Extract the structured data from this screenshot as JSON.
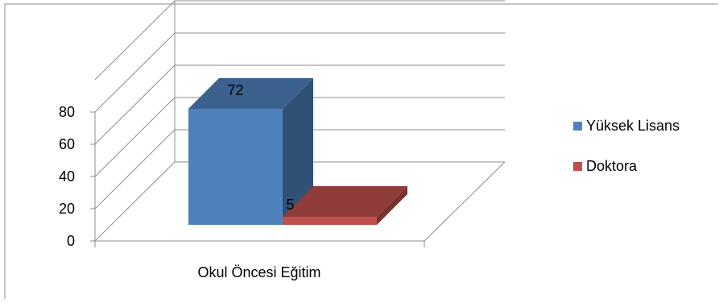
{
  "chart_data": {
    "type": "bar",
    "style": "3d-clustered-column",
    "categories": [
      "Okul Öncesi  Eğitim"
    ],
    "series": [
      {
        "name": "Yüksek Lisans",
        "values": [
          72
        ],
        "color": "#4F81BD"
      },
      {
        "name": "Doktora",
        "values": [
          5
        ],
        "color": "#C0504D"
      }
    ],
    "y_ticks": [
      "0",
      "20",
      "40",
      "60",
      "80"
    ],
    "ylim": [
      0,
      100
    ],
    "grid": true,
    "legend_position": "right",
    "data_labels": [
      "72",
      "5"
    ]
  }
}
